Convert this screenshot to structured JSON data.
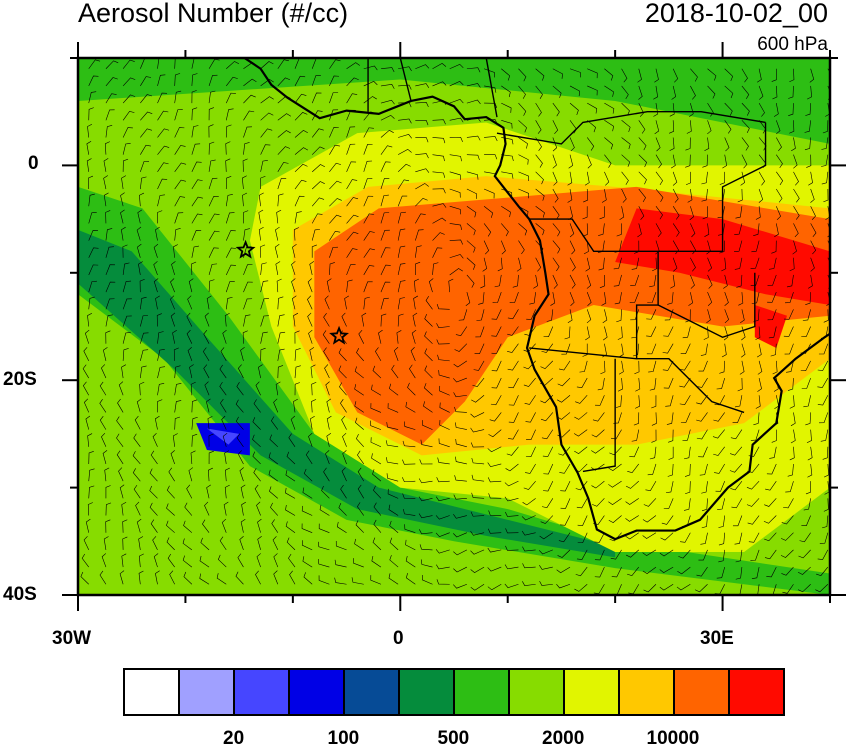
{
  "header": {
    "title": "Aerosol Number (#/cc)",
    "date": "2018-10-02_00",
    "level": "600 hPa"
  },
  "map": {
    "lon_range": [
      -30,
      40
    ],
    "lat_range": [
      -40,
      10
    ],
    "lon_tick_labels": [
      "30W",
      "0",
      "30E"
    ],
    "lat_tick_labels": [
      "0",
      "20S",
      "40S"
    ],
    "markers": "star-icon",
    "overlay": "wind-barbs"
  },
  "colorbar": {
    "colors": [
      "#ffffff",
      "#a0a0ff",
      "#4646ff",
      "#0000e6",
      "#064b96",
      "#058c3c",
      "#2dbe14",
      "#87dc00",
      "#e1f500",
      "#ffc800",
      "#ff6400",
      "#ff0a00"
    ],
    "labels": [
      "20",
      "100",
      "500",
      "2000",
      "10000"
    ]
  }
}
